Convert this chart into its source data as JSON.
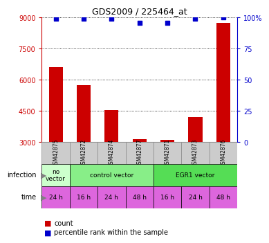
{
  "title": "GDS2009 / 225464_at",
  "samples": [
    "GSM42875",
    "GSM42872",
    "GSM42874",
    "GSM42877",
    "GSM42871",
    "GSM42873",
    "GSM42876"
  ],
  "count_values": [
    6600,
    5750,
    4550,
    3150,
    3100,
    4200,
    8750
  ],
  "percentile_values": [
    99,
    99,
    99,
    96,
    96,
    99,
    100
  ],
  "ylim_left": [
    3000,
    9000
  ],
  "ylim_right": [
    0,
    100
  ],
  "yticks_left": [
    3000,
    4500,
    6000,
    7500,
    9000
  ],
  "yticks_right": [
    0,
    25,
    50,
    75,
    100
  ],
  "yticklabels_right": [
    "0",
    "25",
    "50",
    "75",
    "100%"
  ],
  "infection_groups": [
    {
      "label": "no\nvector",
      "span": [
        0,
        1
      ],
      "color": "#ccffcc"
    },
    {
      "label": "control vector",
      "span": [
        1,
        4
      ],
      "color": "#88ee88"
    },
    {
      "label": "EGR1 vector",
      "span": [
        4,
        7
      ],
      "color": "#55dd55"
    }
  ],
  "time_labels": [
    "24 h",
    "16 h",
    "24 h",
    "48 h",
    "16 h",
    "24 h",
    "48 h"
  ],
  "time_color": "#dd66dd",
  "bar_color": "#cc0000",
  "percentile_color": "#0000cc",
  "count_label": "count",
  "percentile_label": "percentile rank within the sample",
  "left_axis_color": "#cc0000",
  "right_axis_color": "#0000cc",
  "sample_col_color": "#cccccc",
  "sample_col_border": "#888888"
}
